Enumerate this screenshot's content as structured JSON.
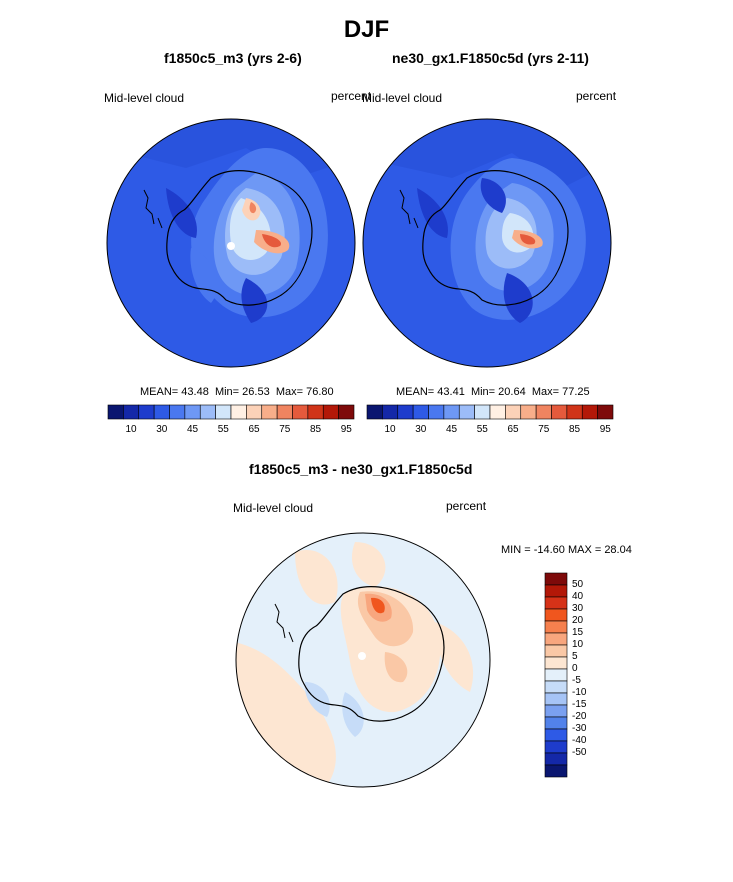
{
  "figure": {
    "title": "DJF"
  },
  "panels": [
    {
      "case": "f1850c5_m3 (yrs 2-6)",
      "variable": "Mid-level cloud",
      "units": "percent",
      "stats": {
        "mean_label": "MEAN=",
        "mean": "43.48",
        "min_label": "Min=",
        "min": "26.53",
        "max_label": "Max=",
        "max": "76.80"
      }
    },
    {
      "case": "ne30_gx1.F1850c5d (yrs 2-11)",
      "variable": "Mid-level cloud",
      "units": "percent",
      "stats": {
        "mean_label": "MEAN=",
        "mean": "43.41",
        "min_label": "Min=",
        "min": "20.64",
        "max_label": "Max=",
        "max": "77.25"
      }
    }
  ],
  "diff_panel": {
    "title": "f1850c5_m3 - ne30_gx1.F1850c5d",
    "variable": "Mid-level cloud",
    "units": "percent",
    "minmax": "MIN = -14.60 MAX =  28.04"
  },
  "colorbar_main": {
    "colors": [
      "#0a1670",
      "#1428a8",
      "#1e3ccc",
      "#2e5ae6",
      "#4a78f0",
      "#6e98f5",
      "#9cbcf8",
      "#d2e6fa",
      "#fff0e4",
      "#fcd2b8",
      "#f8ae8a",
      "#f08460",
      "#e55a3c",
      "#d03418",
      "#b31808",
      "#7e0a0a"
    ],
    "tick_labels": [
      "10",
      "30",
      "45",
      "55",
      "65",
      "75",
      "85",
      "95"
    ]
  },
  "colorbar_diff": {
    "colors": [
      "#7e0a0a",
      "#b31808",
      "#d63218",
      "#f0561e",
      "#f6804e",
      "#f8a67e",
      "#fac8a6",
      "#fde6d2",
      "#e4f0fa",
      "#c6dcf8",
      "#a6c4f6",
      "#7aa0f0",
      "#5282ea",
      "#2e5ae6",
      "#1e3ccc",
      "#1428a8",
      "#0a1670"
    ],
    "tick_labels": [
      "50",
      "40",
      "30",
      "20",
      "15",
      "10",
      "5",
      "0",
      "-5",
      "-10",
      "-15",
      "-20",
      "-30",
      "-40",
      "-50"
    ]
  }
}
